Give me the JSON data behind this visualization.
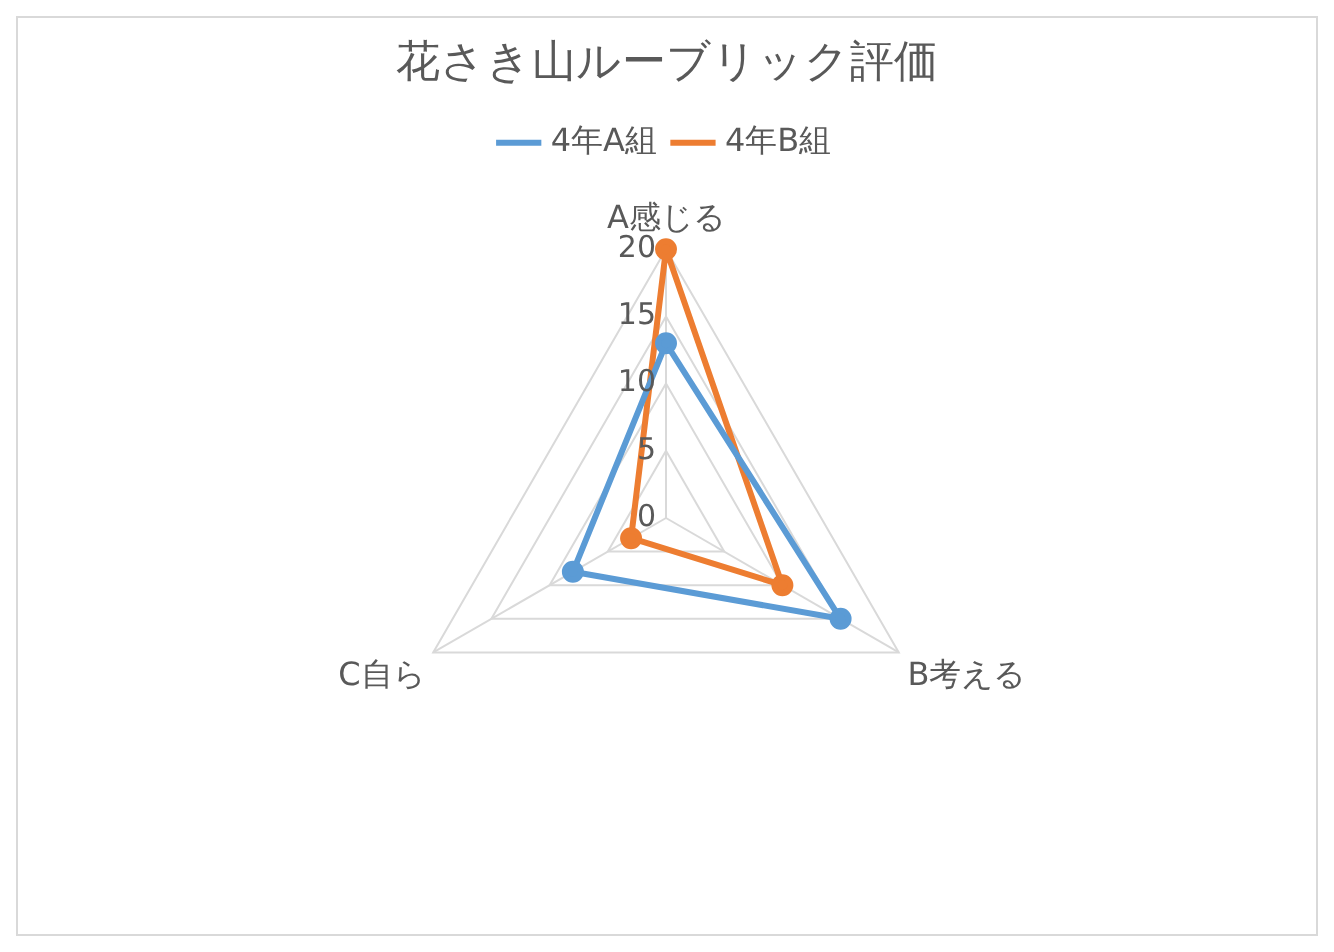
{
  "chart_data": {
    "type": "radar",
    "title": "花さき山ルーブリック評価",
    "categories": [
      "A感じる",
      "B考える",
      "C自ら"
    ],
    "series": [
      {
        "name": "4年A組",
        "color": "#5b9bd5",
        "values": [
          13,
          15,
          8
        ]
      },
      {
        "name": "4年B組",
        "color": "#ed7d31",
        "values": [
          20,
          10,
          3
        ]
      }
    ],
    "ylim": [
      0,
      20
    ],
    "yticks": [
      0,
      5,
      10,
      15,
      20
    ],
    "grid": true,
    "legend": "top",
    "marker": "circle"
  }
}
